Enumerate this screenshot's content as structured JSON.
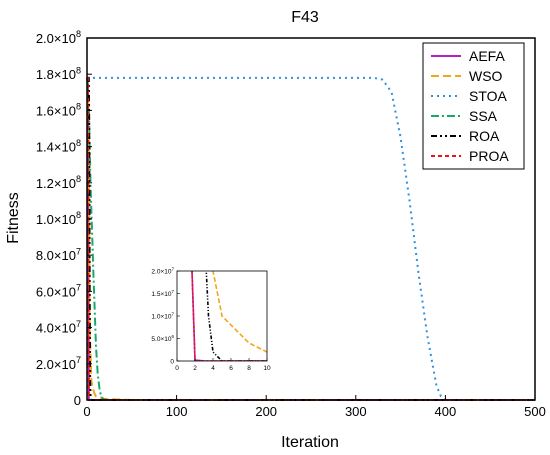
{
  "chart_data": {
    "type": "line",
    "title": "F43",
    "xlabel": "Iteration",
    "ylabel": "Fitness",
    "xlim": [
      0,
      500
    ],
    "ylim": [
      0,
      200000000
    ],
    "x_ticks": [
      0,
      100,
      200,
      300,
      400,
      500
    ],
    "x_tick_labels": [
      "0",
      "100",
      "200",
      "300",
      "400",
      "500"
    ],
    "y_ticks": [
      0,
      20000000,
      40000000,
      60000000,
      80000000,
      100000000,
      120000000,
      140000000,
      160000000,
      180000000,
      200000000
    ],
    "y_tick_labels": [
      {
        "mantissa": "0",
        "exp": ""
      },
      {
        "mantissa": "2.0×10",
        "exp": "7"
      },
      {
        "mantissa": "4.0×10",
        "exp": "7"
      },
      {
        "mantissa": "6.0×10",
        "exp": "7"
      },
      {
        "mantissa": "8.0×10",
        "exp": "7"
      },
      {
        "mantissa": "1.0×10",
        "exp": "8"
      },
      {
        "mantissa": "1.2×10",
        "exp": "8"
      },
      {
        "mantissa": "1.4×10",
        "exp": "8"
      },
      {
        "mantissa": "1.6×10",
        "exp": "8"
      },
      {
        "mantissa": "1.8×10",
        "exp": "8"
      },
      {
        "mantissa": "2.0×10",
        "exp": "8"
      }
    ],
    "legend_position": "top-right",
    "series": [
      {
        "name": "AEFA",
        "color": "#b61fc0",
        "dash": "solid",
        "x": [
          0,
          1,
          1.5,
          2,
          3,
          5,
          500
        ],
        "y": [
          178000000,
          178000000,
          120000000,
          200000,
          30000,
          0,
          0
        ]
      },
      {
        "name": "WSO",
        "color": "#f2a71b",
        "dash": "dashed",
        "x": [
          0,
          1,
          2,
          3,
          5,
          8,
          10,
          20,
          50,
          500
        ],
        "y": [
          178000000,
          176000000,
          150000000,
          40000000,
          10000000,
          4000000,
          2000000,
          600000,
          0,
          0
        ]
      },
      {
        "name": "STOA",
        "color": "#2f8fe0",
        "dash": "dotted",
        "x": [
          0,
          1,
          2,
          320,
          330,
          340,
          350,
          360,
          370,
          380,
          390,
          395,
          400,
          500
        ],
        "y": [
          178000000,
          178000000,
          178000000,
          178000000,
          177000000,
          170000000,
          145000000,
          110000000,
          70000000,
          35000000,
          8000000,
          2000000,
          0,
          0
        ]
      },
      {
        "name": "SSA",
        "color": "#1ba86b",
        "dash": "dashdot",
        "x": [
          0,
          2,
          3,
          4,
          5,
          6,
          7,
          8,
          9,
          10,
          12,
          14,
          16,
          20,
          500
        ],
        "y": [
          178000000,
          165000000,
          140000000,
          118000000,
          102000000,
          88000000,
          72000000,
          58000000,
          44000000,
          30000000,
          14000000,
          6000000,
          1500000,
          0,
          0
        ]
      },
      {
        "name": "ROA",
        "color": "#000000",
        "dash": "dashdotdot",
        "x": [
          0,
          1,
          2,
          2.5,
          3,
          3.5,
          4,
          5,
          500
        ],
        "y": [
          178000000,
          178000000,
          178000000,
          150000000,
          60000000,
          10000000,
          2000000,
          0,
          0
        ]
      },
      {
        "name": "PROA",
        "color": "#e8141c",
        "dash": "shortdash",
        "x": [
          0,
          1,
          1.5,
          2,
          3,
          500
        ],
        "y": [
          178000000,
          178000000,
          60000000,
          0,
          0,
          0
        ]
      }
    ],
    "inset": {
      "xlim": [
        0,
        10
      ],
      "ylim": [
        0,
        20000000
      ],
      "x_ticks": [
        0,
        2,
        4,
        6,
        8,
        10
      ],
      "x_tick_labels": [
        "0",
        "2",
        "4",
        "6",
        "8",
        "10"
      ],
      "y_ticks": [
        0,
        5000000,
        10000000,
        15000000,
        20000000
      ],
      "y_tick_labels": [
        {
          "mantissa": "0",
          "exp": ""
        },
        {
          "mantissa": "5.0×10",
          "exp": "6"
        },
        {
          "mantissa": "1.0×10",
          "exp": "7"
        },
        {
          "mantissa": "1.5×10",
          "exp": "7"
        },
        {
          "mantissa": "2.0×10",
          "exp": "7"
        }
      ]
    }
  }
}
